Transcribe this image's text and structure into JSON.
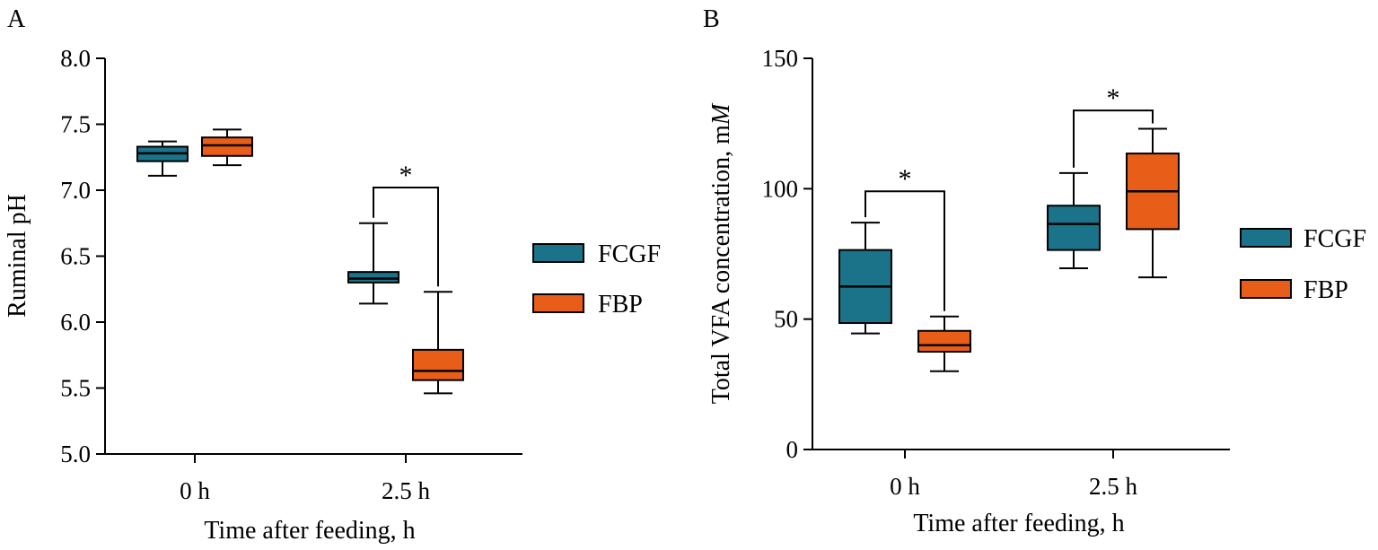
{
  "colors": {
    "FCGF": "#1a7389",
    "FBP": "#e85d18"
  },
  "chart_data": [
    {
      "panel": "A",
      "type": "boxplot",
      "xlabel": "Time after feeding, h",
      "ylabel": "Ruminal pH",
      "ylim": [
        5.0,
        8.0
      ],
      "yticks": [
        5.0,
        5.5,
        6.0,
        6.5,
        7.0,
        7.5,
        8.0
      ],
      "ytick_labels": [
        "5.0",
        "5.5",
        "6.0",
        "6.5",
        "7.0",
        "7.5",
        "8.0"
      ],
      "categories": [
        "0 h",
        "2.5 h"
      ],
      "legend": [
        "FCGF",
        "FBP"
      ],
      "series": [
        {
          "name": "FCGF",
          "boxes": [
            {
              "min": 7.11,
              "q1": 7.22,
              "median": 7.28,
              "q3": 7.33,
              "max": 7.37
            },
            {
              "min": 6.14,
              "q1": 6.3,
              "median": 6.33,
              "q3": 6.38,
              "max": 6.75
            }
          ]
        },
        {
          "name": "FBP",
          "boxes": [
            {
              "min": 7.19,
              "q1": 7.26,
              "median": 7.34,
              "q3": 7.4,
              "max": 7.46
            },
            {
              "min": 5.46,
              "q1": 5.56,
              "median": 5.63,
              "q3": 5.79,
              "max": 6.23
            }
          ]
        }
      ],
      "significance": [
        {
          "category": "2.5 h",
          "label": "*",
          "y": 7.02
        }
      ]
    },
    {
      "panel": "B",
      "type": "boxplot",
      "xlabel": "Time after feeding, h",
      "ylabel": "Total VFA concentration, m",
      "ylabel_unit": "M",
      "ylim": [
        0,
        150
      ],
      "yticks": [
        0,
        50,
        100,
        150
      ],
      "ytick_labels": [
        "0",
        "50",
        "100",
        "150"
      ],
      "categories": [
        "0 h",
        "2.5 h"
      ],
      "legend": [
        "FCGF",
        "FBP"
      ],
      "series": [
        {
          "name": "FCGF",
          "boxes": [
            {
              "min": 44.5,
              "q1": 48.5,
              "median": 62.5,
              "q3": 76.5,
              "max": 87.0
            },
            {
              "min": 69.5,
              "q1": 76.5,
              "median": 86.5,
              "q3": 93.5,
              "max": 106.0
            }
          ]
        },
        {
          "name": "FBP",
          "boxes": [
            {
              "min": 30.0,
              "q1": 37.5,
              "median": 40.0,
              "q3": 45.5,
              "max": 51.0
            },
            {
              "min": 66.0,
              "q1": 84.5,
              "median": 99.0,
              "q3": 113.5,
              "max": 123.0
            }
          ]
        }
      ],
      "significance": [
        {
          "category": "0 h",
          "label": "*",
          "y": 99.0
        },
        {
          "category": "2.5 h",
          "label": "*",
          "y": 130.0
        }
      ]
    }
  ]
}
